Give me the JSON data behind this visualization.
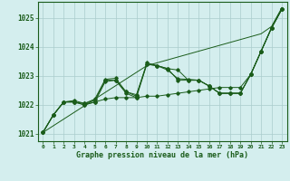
{
  "title": "Graphe pression niveau de la mer (hPa)",
  "background_color": "#d4eeee",
  "grid_color": "#aacccc",
  "line_color": "#1a5c1a",
  "xlim": [
    -0.5,
    23.5
  ],
  "ylim": [
    1020.75,
    1025.55
  ],
  "yticks": [
    1021,
    1022,
    1023,
    1024,
    1025
  ],
  "xticks": [
    0,
    1,
    2,
    3,
    4,
    5,
    6,
    7,
    8,
    9,
    10,
    11,
    12,
    13,
    14,
    15,
    16,
    17,
    18,
    19,
    20,
    21,
    22,
    23
  ],
  "s1": [
    1021.05,
    1021.65,
    1022.1,
    1022.1,
    1022.0,
    1022.1,
    1022.2,
    1022.25,
    1022.25,
    1022.25,
    1022.3,
    1022.3,
    1022.35,
    1022.4,
    1022.45,
    1022.5,
    1022.55,
    1022.6,
    1022.6,
    1022.6,
    1023.05,
    1023.85,
    1024.65,
    1025.3
  ],
  "s2": [
    1021.05,
    1021.65,
    1022.1,
    1022.1,
    1022.0,
    1022.1,
    1022.8,
    1022.85,
    1022.4,
    1022.25,
    1023.4,
    1023.35,
    1023.25,
    1023.2,
    1022.85,
    1022.85,
    1022.65,
    1022.4,
    1022.4,
    1022.4,
    1023.05,
    1023.85,
    1024.65,
    1025.3
  ],
  "s3": [
    1021.05,
    1021.65,
    1022.1,
    1022.1,
    1022.05,
    1022.15,
    1022.85,
    1022.85,
    1022.45,
    1022.3,
    1023.45,
    1023.35,
    1023.25,
    1022.85,
    1022.85,
    1022.85,
    1022.65,
    1022.4,
    1022.4,
    1022.4,
    1023.05,
    1023.85,
    1024.65,
    1025.3
  ],
  "s4": [
    1021.05,
    1021.65,
    1022.1,
    1022.15,
    1022.05,
    1022.2,
    1022.88,
    1022.92,
    1022.45,
    1022.35,
    1023.4,
    1023.35,
    1023.2,
    1022.9,
    1022.88,
    1022.85,
    1022.65,
    1022.4,
    1022.4,
    1022.4,
    1023.05,
    1023.85,
    1024.65,
    1025.3
  ],
  "s_straight": [
    1021.05,
    1021.28,
    1021.51,
    1021.74,
    1021.97,
    1022.2,
    1022.43,
    1022.66,
    1022.89,
    1023.12,
    1023.35,
    1023.45,
    1023.55,
    1023.65,
    1023.75,
    1023.85,
    1023.95,
    1024.05,
    1024.15,
    1024.25,
    1024.35,
    1024.45,
    1024.7,
    1025.35
  ]
}
